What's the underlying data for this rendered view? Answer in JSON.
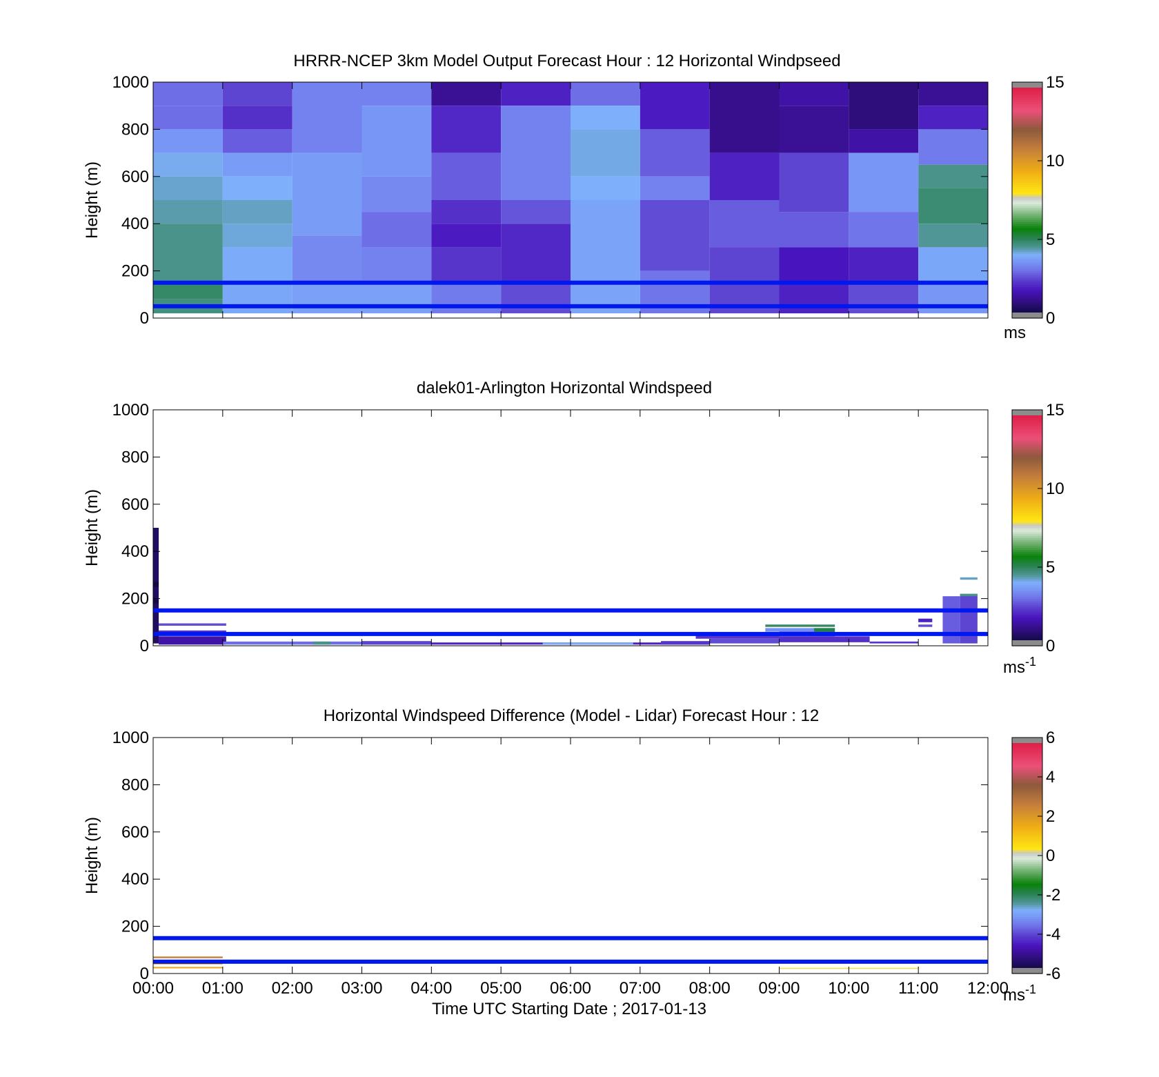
{
  "chart_data": [
    {
      "type": "heatmap",
      "title": "HRRR-NCEP 3km Model Output   Forecast Hour : 12 Horizontal Windpseed",
      "ylabel": "Height (m)",
      "xlabel": "",
      "ylim": [
        0,
        1000
      ],
      "xlim_hours": [
        0,
        12
      ],
      "yticks": [
        0,
        200,
        400,
        600,
        800,
        1000
      ],
      "xtick_labels_shown": false,
      "colorbar": {
        "min": 0,
        "max": 15,
        "ticks": [
          0,
          5,
          10,
          15
        ],
        "unit": "ms",
        "unit_sup": ""
      },
      "reference_lines_m": [
        150,
        50
      ],
      "line_color": "#0018f0",
      "cells": [
        {
          "t0": 0,
          "t1": 1,
          "h0": 900,
          "h1": 1000,
          "v": 3.0
        },
        {
          "t0": 0,
          "t1": 1,
          "h0": 800,
          "h1": 900,
          "v": 3.0
        },
        {
          "t0": 0,
          "t1": 1,
          "h0": 700,
          "h1": 800,
          "v": 3.6
        },
        {
          "t0": 0,
          "t1": 1,
          "h0": 600,
          "h1": 700,
          "v": 4.1
        },
        {
          "t0": 0,
          "t1": 1,
          "h0": 500,
          "h1": 600,
          "v": 4.25
        },
        {
          "t0": 0,
          "t1": 1,
          "h0": 400,
          "h1": 500,
          "v": 4.4
        },
        {
          "t0": 0,
          "t1": 1,
          "h0": 150,
          "h1": 400,
          "v": 4.6
        },
        {
          "t0": 0,
          "t1": 1,
          "h0": 80,
          "h1": 150,
          "v": 4.9
        },
        {
          "t0": 0,
          "t1": 1,
          "h0": 20,
          "h1": 80,
          "v": 4.7
        },
        {
          "t0": 1,
          "t1": 2,
          "h0": 900,
          "h1": 1000,
          "v": 2.5
        },
        {
          "t0": 1,
          "t1": 2,
          "h0": 800,
          "h1": 900,
          "v": 2.2
        },
        {
          "t0": 1,
          "t1": 2,
          "h0": 700,
          "h1": 800,
          "v": 2.8
        },
        {
          "t0": 1,
          "t1": 2,
          "h0": 600,
          "h1": 700,
          "v": 3.7
        },
        {
          "t0": 1,
          "t1": 2,
          "h0": 500,
          "h1": 600,
          "v": 4.05
        },
        {
          "t0": 1,
          "t1": 2,
          "h0": 400,
          "h1": 500,
          "v": 4.3
        },
        {
          "t0": 1,
          "t1": 2,
          "h0": 300,
          "h1": 400,
          "v": 4.2
        },
        {
          "t0": 1,
          "t1": 2,
          "h0": 150,
          "h1": 300,
          "v": 4.0
        },
        {
          "t0": 1,
          "t1": 2,
          "h0": 20,
          "h1": 150,
          "v": 3.9
        },
        {
          "t0": 2,
          "t1": 3,
          "h0": 700,
          "h1": 1000,
          "v": 3.3
        },
        {
          "t0": 2,
          "t1": 3,
          "h0": 350,
          "h1": 700,
          "v": 3.7
        },
        {
          "t0": 2,
          "t1": 3,
          "h0": 150,
          "h1": 350,
          "v": 3.4
        },
        {
          "t0": 2,
          "t1": 3,
          "h0": 20,
          "h1": 150,
          "v": 3.8
        },
        {
          "t0": 3,
          "t1": 4,
          "h0": 900,
          "h1": 1000,
          "v": 3.3
        },
        {
          "t0": 3,
          "t1": 4,
          "h0": 600,
          "h1": 900,
          "v": 3.6
        },
        {
          "t0": 3,
          "t1": 4,
          "h0": 450,
          "h1": 600,
          "v": 3.4
        },
        {
          "t0": 3,
          "t1": 4,
          "h0": 300,
          "h1": 450,
          "v": 3.0
        },
        {
          "t0": 3,
          "t1": 4,
          "h0": 150,
          "h1": 300,
          "v": 3.3
        },
        {
          "t0": 3,
          "t1": 4,
          "h0": 20,
          "h1": 150,
          "v": 3.8
        },
        {
          "t0": 4,
          "t1": 5,
          "h0": 900,
          "h1": 1000,
          "v": 1.3
        },
        {
          "t0": 4,
          "t1": 5,
          "h0": 700,
          "h1": 900,
          "v": 2.1
        },
        {
          "t0": 4,
          "t1": 5,
          "h0": 500,
          "h1": 700,
          "v": 2.8
        },
        {
          "t0": 4,
          "t1": 5,
          "h0": 400,
          "h1": 500,
          "v": 2.2
        },
        {
          "t0": 4,
          "t1": 5,
          "h0": 300,
          "h1": 400,
          "v": 1.9
        },
        {
          "t0": 4,
          "t1": 5,
          "h0": 150,
          "h1": 300,
          "v": 2.3
        },
        {
          "t0": 4,
          "t1": 5,
          "h0": 20,
          "h1": 150,
          "v": 3.2
        },
        {
          "t0": 5,
          "t1": 6,
          "h0": 900,
          "h1": 1000,
          "v": 2.0
        },
        {
          "t0": 5,
          "t1": 6,
          "h0": 500,
          "h1": 900,
          "v": 3.3
        },
        {
          "t0": 5,
          "t1": 6,
          "h0": 400,
          "h1": 500,
          "v": 2.7
        },
        {
          "t0": 5,
          "t1": 6,
          "h0": 150,
          "h1": 400,
          "v": 2.1
        },
        {
          "t0": 5,
          "t1": 6,
          "h0": 20,
          "h1": 150,
          "v": 2.6
        },
        {
          "t0": 6,
          "t1": 7,
          "h0": 900,
          "h1": 1000,
          "v": 3.0
        },
        {
          "t0": 6,
          "t1": 7,
          "h0": 800,
          "h1": 900,
          "v": 4.05
        },
        {
          "t0": 6,
          "t1": 7,
          "h0": 600,
          "h1": 800,
          "v": 4.15
        },
        {
          "t0": 6,
          "t1": 7,
          "h0": 500,
          "h1": 600,
          "v": 4.05
        },
        {
          "t0": 6,
          "t1": 7,
          "h0": 20,
          "h1": 500,
          "v": 3.85
        },
        {
          "t0": 7,
          "t1": 8,
          "h0": 800,
          "h1": 1000,
          "v": 1.9
        },
        {
          "t0": 7,
          "t1": 8,
          "h0": 600,
          "h1": 800,
          "v": 2.8
        },
        {
          "t0": 7,
          "t1": 8,
          "h0": 500,
          "h1": 600,
          "v": 3.3
        },
        {
          "t0": 7,
          "t1": 8,
          "h0": 200,
          "h1": 500,
          "v": 2.6
        },
        {
          "t0": 7,
          "t1": 8,
          "h0": 20,
          "h1": 200,
          "v": 3.1
        },
        {
          "t0": 8,
          "t1": 9,
          "h0": 700,
          "h1": 1000,
          "v": 1.2
        },
        {
          "t0": 8,
          "t1": 9,
          "h0": 500,
          "h1": 700,
          "v": 2.0
        },
        {
          "t0": 8,
          "t1": 9,
          "h0": 300,
          "h1": 500,
          "v": 2.8
        },
        {
          "t0": 8,
          "t1": 9,
          "h0": 20,
          "h1": 300,
          "v": 2.5
        },
        {
          "t0": 9,
          "t1": 10,
          "h0": 900,
          "h1": 1000,
          "v": 1.5
        },
        {
          "t0": 9,
          "t1": 10,
          "h0": 700,
          "h1": 900,
          "v": 1.3
        },
        {
          "t0": 9,
          "t1": 10,
          "h0": 450,
          "h1": 700,
          "v": 2.5
        },
        {
          "t0": 9,
          "t1": 10,
          "h0": 300,
          "h1": 450,
          "v": 2.8
        },
        {
          "t0": 9,
          "t1": 10,
          "h0": 150,
          "h1": 300,
          "v": 1.8
        },
        {
          "t0": 9,
          "t1": 10,
          "h0": 20,
          "h1": 150,
          "v": 2.0
        },
        {
          "t0": 10,
          "t1": 11,
          "h0": 800,
          "h1": 1000,
          "v": 1.0
        },
        {
          "t0": 10,
          "t1": 11,
          "h0": 700,
          "h1": 800,
          "v": 1.5
        },
        {
          "t0": 10,
          "t1": 11,
          "h0": 450,
          "h1": 700,
          "v": 3.6
        },
        {
          "t0": 10,
          "t1": 11,
          "h0": 300,
          "h1": 450,
          "v": 3.1
        },
        {
          "t0": 10,
          "t1": 11,
          "h0": 150,
          "h1": 300,
          "v": 2.0
        },
        {
          "t0": 10,
          "t1": 11,
          "h0": 20,
          "h1": 150,
          "v": 2.6
        },
        {
          "t0": 11,
          "t1": 12,
          "h0": 900,
          "h1": 1000,
          "v": 1.3
        },
        {
          "t0": 11,
          "t1": 12,
          "h0": 800,
          "h1": 900,
          "v": 2.0
        },
        {
          "t0": 11,
          "t1": 12,
          "h0": 650,
          "h1": 800,
          "v": 3.2
        },
        {
          "t0": 11,
          "t1": 12,
          "h0": 550,
          "h1": 650,
          "v": 4.6
        },
        {
          "t0": 11,
          "t1": 12,
          "h0": 400,
          "h1": 550,
          "v": 4.8
        },
        {
          "t0": 11,
          "t1": 12,
          "h0": 300,
          "h1": 400,
          "v": 4.5
        },
        {
          "t0": 11,
          "t1": 12,
          "h0": 150,
          "h1": 300,
          "v": 3.9
        },
        {
          "t0": 11,
          "t1": 12,
          "h0": 20,
          "h1": 150,
          "v": 3.6
        }
      ]
    },
    {
      "type": "heatmap",
      "title": "dalek01-Arlington  Horizontal Windspeed",
      "ylabel": "Height (m)",
      "xlabel": "",
      "ylim": [
        0,
        1000
      ],
      "xlim_hours": [
        0,
        12
      ],
      "yticks": [
        0,
        200,
        400,
        600,
        800,
        1000
      ],
      "xtick_labels_shown": false,
      "colorbar": {
        "min": 0,
        "max": 15,
        "ticks": [
          0,
          5,
          10,
          15
        ],
        "unit": "ms",
        "unit_sup": "-1"
      },
      "reference_lines_m": [
        150,
        50
      ],
      "line_color": "#0018f0",
      "cells": [
        {
          "t0": 0,
          "t1": 0.08,
          "h0": 10,
          "h1": 500,
          "v": 0.7
        },
        {
          "t0": 0,
          "t1": 0.08,
          "h0": 250,
          "h1": 270,
          "v": 0.2
        },
        {
          "t0": 0,
          "t1": 0.08,
          "h0": 180,
          "h1": 195,
          "v": 0.2
        },
        {
          "t0": 0.08,
          "t1": 1.05,
          "h0": 85,
          "h1": 95,
          "v": 2.6
        },
        {
          "t0": 0.08,
          "t1": 1.05,
          "h0": 55,
          "h1": 65,
          "v": 2.2
        },
        {
          "t0": 0.08,
          "t1": 1.05,
          "h0": 5,
          "h1": 40,
          "v": 1.5
        },
        {
          "t0": 1.0,
          "t1": 4.0,
          "h0": 5,
          "h1": 18,
          "v": 3.0
        },
        {
          "t0": 2.3,
          "t1": 2.55,
          "h0": 5,
          "h1": 18,
          "v": 4.6
        },
        {
          "t0": 3.0,
          "t1": 4.0,
          "h0": 5,
          "h1": 20,
          "v": 2.5
        },
        {
          "t0": 4.0,
          "t1": 8.0,
          "h0": 5,
          "h1": 14,
          "v": 2.0
        },
        {
          "t0": 5.6,
          "t1": 6.9,
          "h0": 5,
          "h1": 14,
          "v": 4.0
        },
        {
          "t0": 7.3,
          "t1": 8.0,
          "h0": 5,
          "h1": 20,
          "v": 2.3
        },
        {
          "t0": 7.8,
          "t1": 9.0,
          "h0": 30,
          "h1": 45,
          "v": 2.3
        },
        {
          "t0": 8.0,
          "t1": 9.0,
          "h0": 10,
          "h1": 30,
          "v": 2.6
        },
        {
          "t0": 8.8,
          "t1": 9.8,
          "h0": 80,
          "h1": 90,
          "v": 4.9
        },
        {
          "t0": 8.8,
          "t1": 9.8,
          "h0": 60,
          "h1": 75,
          "v": 3.5
        },
        {
          "t0": 9.0,
          "t1": 9.8,
          "h0": 40,
          "h1": 60,
          "v": 2.7
        },
        {
          "t0": 9.0,
          "t1": 10.3,
          "h0": 15,
          "h1": 40,
          "v": 2.2
        },
        {
          "t0": 9.5,
          "t1": 9.8,
          "h0": 60,
          "h1": 75,
          "v": 5.2
        },
        {
          "t0": 10.3,
          "t1": 11.0,
          "h0": 10,
          "h1": 18,
          "v": 2.3
        },
        {
          "t0": 11.0,
          "t1": 11.2,
          "h0": 100,
          "h1": 115,
          "v": 2.0
        },
        {
          "t0": 11.0,
          "t1": 11.2,
          "h0": 80,
          "h1": 90,
          "v": 2.6
        },
        {
          "t0": 11.35,
          "t1": 11.6,
          "h0": 10,
          "h1": 210,
          "v": 2.8
        },
        {
          "t0": 11.6,
          "t1": 11.85,
          "h0": 10,
          "h1": 220,
          "v": 2.5
        },
        {
          "t0": 11.6,
          "t1": 11.85,
          "h0": 280,
          "h1": 290,
          "v": 4.3
        },
        {
          "t0": 11.6,
          "t1": 11.85,
          "h0": 210,
          "h1": 220,
          "v": 4.6
        }
      ]
    },
    {
      "type": "heatmap",
      "title": "Horizontal Windspeed Difference (Model - Lidar) Forecast Hour : 12",
      "ylabel": "Height (m)",
      "xlabel": "Time UTC  Starting Date ; 2017-01-13",
      "ylim": [
        0,
        1000
      ],
      "xlim_hours": [
        0,
        12
      ],
      "yticks": [
        0,
        200,
        400,
        600,
        800,
        1000
      ],
      "xtick_labels": [
        "00:00",
        "01:00",
        "02:00",
        "03:00",
        "04:00",
        "05:00",
        "06:00",
        "07:00",
        "08:00",
        "09:00",
        "10:00",
        "11:00",
        "12:00"
      ],
      "xtick_labels_shown": true,
      "colorbar": {
        "min": -6,
        "max": 6,
        "ticks": [
          -6,
          -4,
          -2,
          0,
          2,
          4,
          6
        ],
        "unit": "ms",
        "unit_sup": "-1"
      },
      "reference_lines_m": [
        150,
        50
      ],
      "line_color": "#0018f0",
      "cells": [
        {
          "t0": 0,
          "t1": 1.0,
          "h0": 65,
          "h1": 72,
          "v": 2.6
        },
        {
          "t0": 0,
          "t1": 1.0,
          "h0": 38,
          "h1": 44,
          "v": 1.2
        },
        {
          "t0": 0,
          "t1": 1.0,
          "h0": 22,
          "h1": 28,
          "v": 1.6
        },
        {
          "t0": 9.0,
          "t1": 11.0,
          "h0": 20,
          "h1": 24,
          "v": 0.3
        }
      ]
    }
  ]
}
